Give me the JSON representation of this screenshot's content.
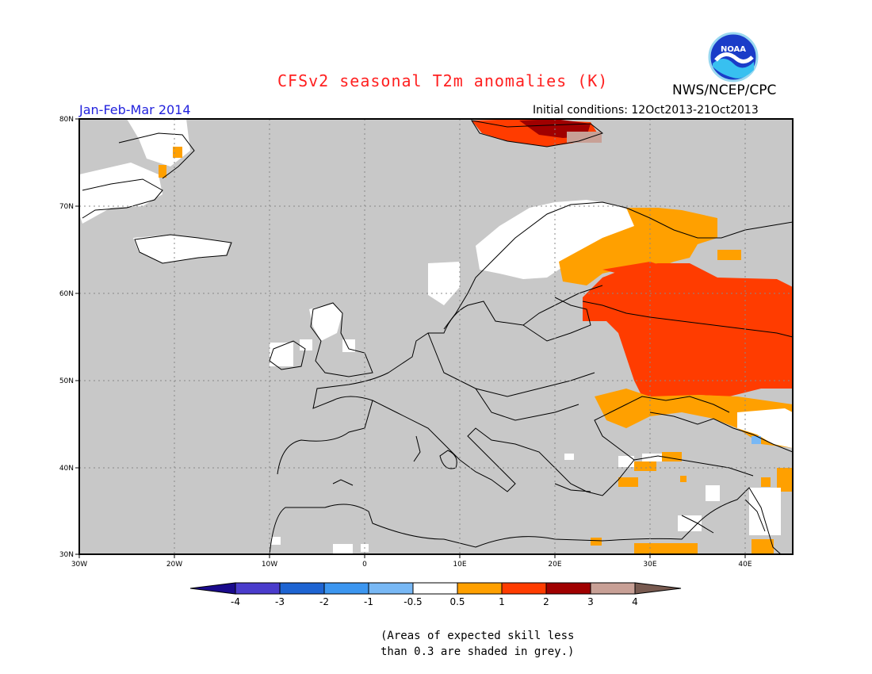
{
  "header": {
    "title": "CFSv2 seasonal T2m anomalies (K)",
    "agency": "NWS/NCEP/CPC",
    "season": "Jan-Feb-Mar 2014",
    "initial_conditions": "Initial conditions: 12Oct2013-21Oct2013"
  },
  "logo": {
    "text": "NOAA"
  },
  "map": {
    "lat_labels": [
      "80N",
      "70N",
      "60N",
      "50N",
      "40N",
      "30N"
    ],
    "lon_labels": [
      "30W",
      "20W",
      "10W",
      "0",
      "10E",
      "20E",
      "30E",
      "40E"
    ],
    "background_color": "#c8c8c8"
  },
  "colorbar": {
    "labels": [
      "-4",
      "-3",
      "-2",
      "-1",
      "-0.5",
      "0.5",
      "1",
      "2",
      "3",
      "4"
    ],
    "colors": [
      "#1a0a8c",
      "#4a3ccc",
      "#1e64d2",
      "#3c96f0",
      "#78b8f5",
      "#ffffff",
      "#ffa000",
      "#ff3c00",
      "#a00000",
      "#c8a096",
      "#785a50"
    ]
  },
  "footnote": {
    "line1": "(Areas of expected skill less",
    "line2": "than 0.3 are shaded in grey.)"
  }
}
